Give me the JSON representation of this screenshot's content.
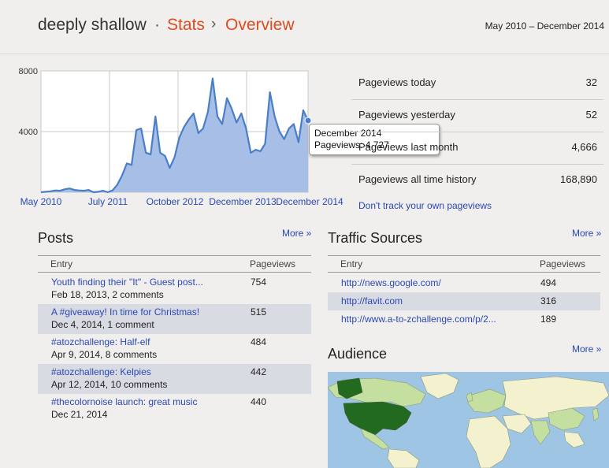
{
  "header": {
    "blog_name": "deeply shallow",
    "separator": "·",
    "crumb_stats": "Stats",
    "crumb_arrow": "›",
    "crumb_overview": "Overview",
    "date_range": "May 2010 – December 2014"
  },
  "chart_data": {
    "type": "area",
    "title": "",
    "y_ticks": [
      "8000",
      "4000"
    ],
    "ylim": [
      0,
      8000
    ],
    "x_labels": [
      "May 2010",
      "July 2011",
      "October 2012",
      "December 2013",
      "December 2014"
    ],
    "values": [
      0,
      30,
      60,
      120,
      100,
      200,
      250,
      150,
      120,
      100,
      150,
      0,
      30,
      100,
      0,
      120,
      500,
      1100,
      1900,
      1800,
      4100,
      4200,
      2600,
      2500,
      5000,
      2600,
      2400,
      1600,
      2300,
      3600,
      4300,
      4800,
      5200,
      3900,
      4200,
      5300,
      7500,
      5000,
      4500,
      6200,
      5500,
      4600,
      5200,
      4200,
      2600,
      2800,
      2700,
      3200,
      6600,
      5000,
      4000,
      3500,
      4200,
      4500,
      3300,
      5400,
      4727
    ],
    "color": "#4a7ec7",
    "fill": "#a7bfe6",
    "tooltip": {
      "date": "December 2014",
      "label": "Pageviews: 4,727"
    }
  },
  "summary": {
    "rows": [
      {
        "label": "Pageviews today",
        "value": "32"
      },
      {
        "label": "Pageviews yesterday",
        "value": "52"
      },
      {
        "label": "Pageviews last month",
        "value": "4,666"
      },
      {
        "label": "Pageviews all time history",
        "value": "168,890"
      }
    ],
    "dont_track": "Don't track your own pageviews"
  },
  "posts": {
    "title": "Posts",
    "more": "More »",
    "col_entry": "Entry",
    "col_pageviews": "Pageviews",
    "rows": [
      {
        "title": "Youth finding their \"It\" - Guest post...",
        "sub": "Feb 18, 2013, 2 comments",
        "views": "754"
      },
      {
        "title": "A #giveaway! In time for Christmas!",
        "sub": "Dec 4, 2014, 1 comment",
        "views": "515"
      },
      {
        "title": "#atozchallenge: Half-elf",
        "sub": "Apr 9, 2014, 8 comments",
        "views": "484"
      },
      {
        "title": "#atozchallenge: Kelpies",
        "sub": "Apr 12, 2014, 10 comments",
        "views": "442"
      },
      {
        "title": "#thecolornoise launch: great music",
        "sub": "Dec 21, 2014",
        "views": "440"
      }
    ]
  },
  "traffic": {
    "title": "Traffic Sources",
    "more": "More »",
    "col_entry": "Entry",
    "col_pageviews": "Pageviews",
    "rows": [
      {
        "url": "http://news.google.com/",
        "views": "494"
      },
      {
        "url": "http://favit.com",
        "views": "316"
      },
      {
        "url": "http://www.a-to-zchallenge.com/p/2...",
        "views": "189"
      }
    ]
  },
  "audience": {
    "title": "Audience",
    "more": "More »",
    "colors": {
      "ocean": "#9ec5e3",
      "low": "#f4f1cf",
      "mid": "#c4dfa0",
      "high": "#226a1f"
    }
  }
}
